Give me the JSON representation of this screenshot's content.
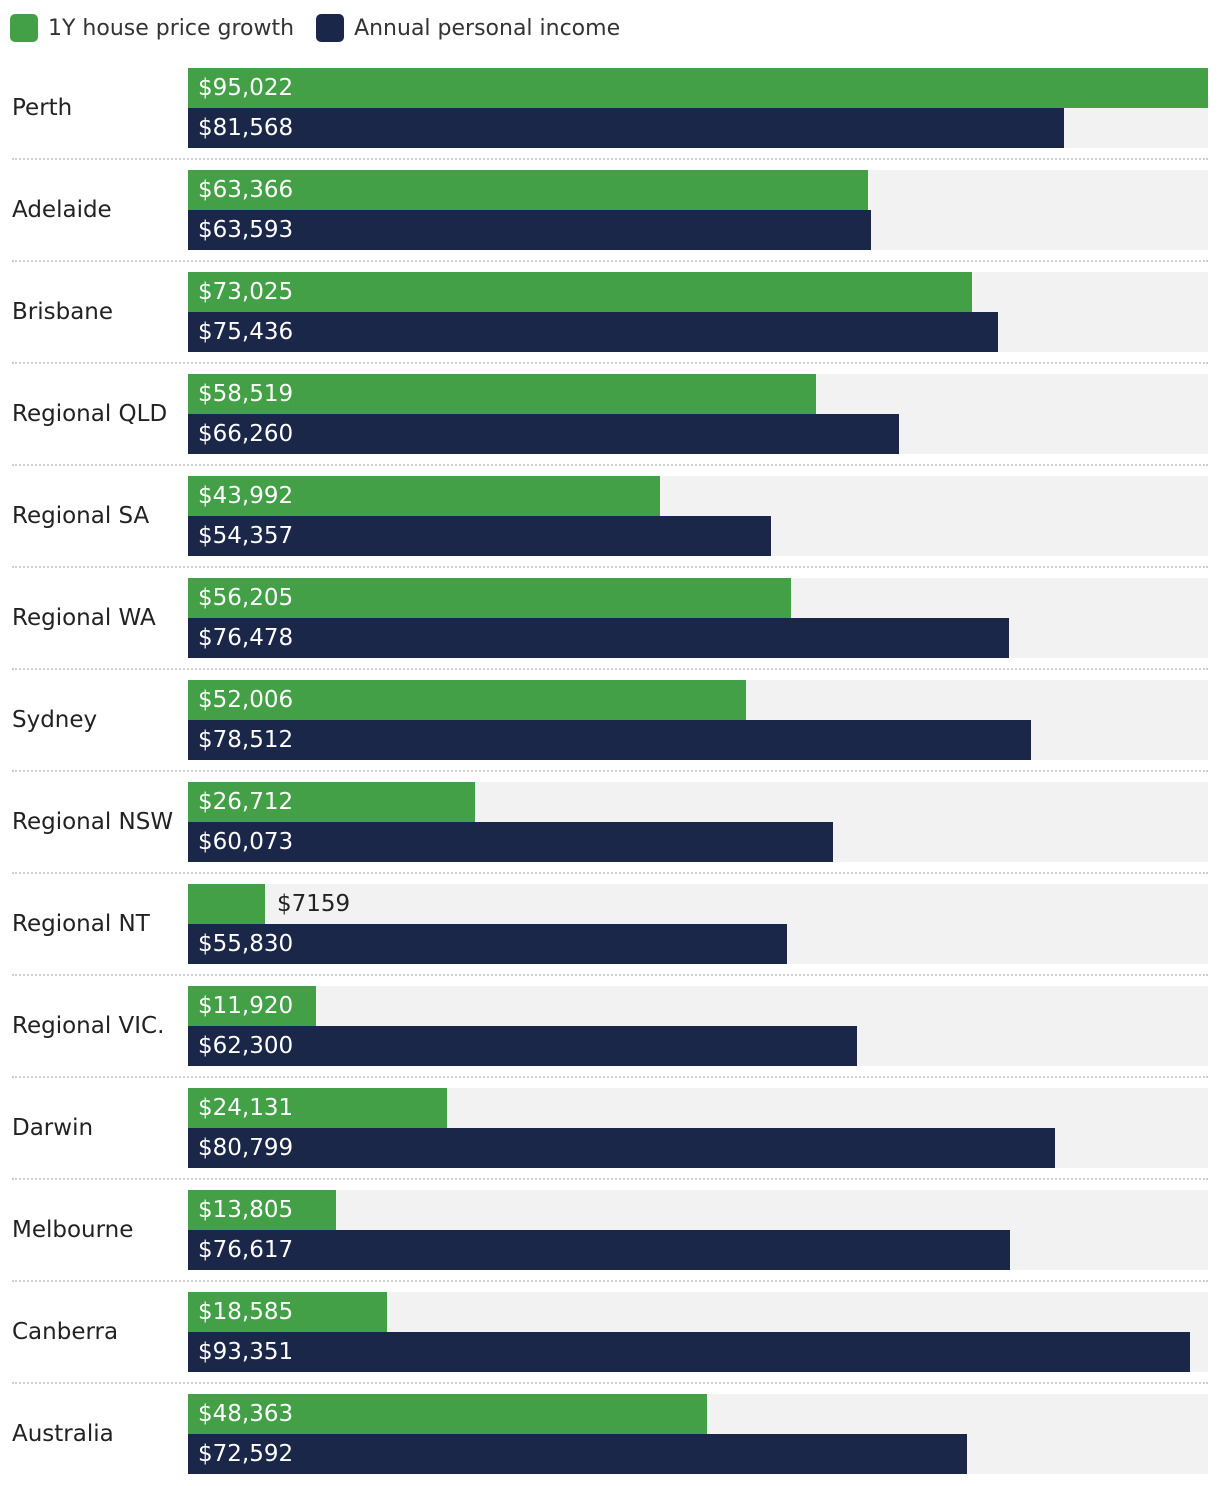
{
  "legend": {
    "growth_label": "1Y house price growth",
    "income_label": "Annual personal income"
  },
  "colors": {
    "growth": "#43a047",
    "income": "#1b2749",
    "track": "#f2f2f2"
  },
  "chart_data": {
    "type": "bar",
    "orientation": "horizontal",
    "xlim": [
      0,
      95022
    ],
    "categories": [
      "Perth",
      "Adelaide",
      "Brisbane",
      "Regional QLD",
      "Regional SA",
      "Regional WA",
      "Sydney",
      "Regional NSW",
      "Regional NT",
      "Regional VIC.",
      "Darwin",
      "Melbourne",
      "Canberra",
      "Australia"
    ],
    "series": [
      {
        "name": "1Y house price growth",
        "values": [
          95022,
          63366,
          73025,
          58519,
          43992,
          56205,
          52006,
          26712,
          7159,
          11920,
          24131,
          13805,
          18585,
          48363
        ],
        "labels": [
          "$95,022",
          "$63,366",
          "$73,025",
          "$58,519",
          "$43,992",
          "$56,205",
          "$52,006",
          "$26,712",
          "$7159",
          "$11,920",
          "$24,131",
          "$13,805",
          "$18,585",
          "$48,363"
        ]
      },
      {
        "name": "Annual personal income",
        "values": [
          81568,
          63593,
          75436,
          66260,
          54357,
          76478,
          78512,
          60073,
          55830,
          62300,
          80799,
          76617,
          93351,
          72592
        ],
        "labels": [
          "$81,568",
          "$63,593",
          "$75,436",
          "$66,260",
          "$54,357",
          "$76,478",
          "$78,512",
          "$60,073",
          "$55,830",
          "$62,300",
          "$80,799",
          "$76,617",
          "$93,351",
          "$72,592"
        ]
      }
    ],
    "legend_position": "top-left",
    "grid": false
  }
}
